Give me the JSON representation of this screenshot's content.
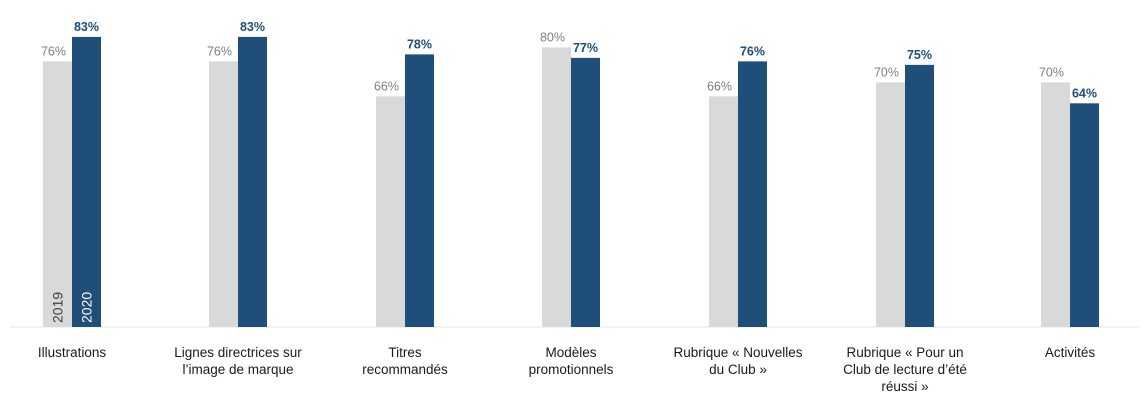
{
  "chart_data": {
    "type": "bar",
    "categories": [
      [
        "Illustrations"
      ],
      [
        "Lignes directrices sur",
        "l’image de marque"
      ],
      [
        "Titres",
        "recommandés"
      ],
      [
        "Modèles",
        "promotionnels"
      ],
      [
        "Rubrique « Nouvelles",
        "du Club »"
      ],
      [
        "Rubrique «  Pour un",
        "Club de lecture d’été",
        "réussi »"
      ],
      [
        "Activités"
      ]
    ],
    "series": [
      {
        "name": "2019",
        "values": [
          76,
          76,
          66,
          80,
          66,
          70,
          70
        ],
        "labels": [
          "76%",
          "76%",
          "66%",
          "80%",
          "66%",
          "70%",
          "70%"
        ],
        "color": "#d9d9d9",
        "label_color": "#7f7f7f"
      },
      {
        "name": "2020",
        "values": [
          83,
          83,
          78,
          77,
          76,
          75,
          64
        ],
        "labels": [
          "83%",
          "83%",
          "78%",
          "77%",
          "76%",
          "75%",
          "64%"
        ],
        "color": "#1f4e79",
        "label_color": "#1f4e79"
      }
    ],
    "ylim": [
      0,
      100
    ],
    "legend_placement": "inside-first-bars",
    "grid": false,
    "title": "",
    "xlabel": "",
    "ylabel": ""
  }
}
